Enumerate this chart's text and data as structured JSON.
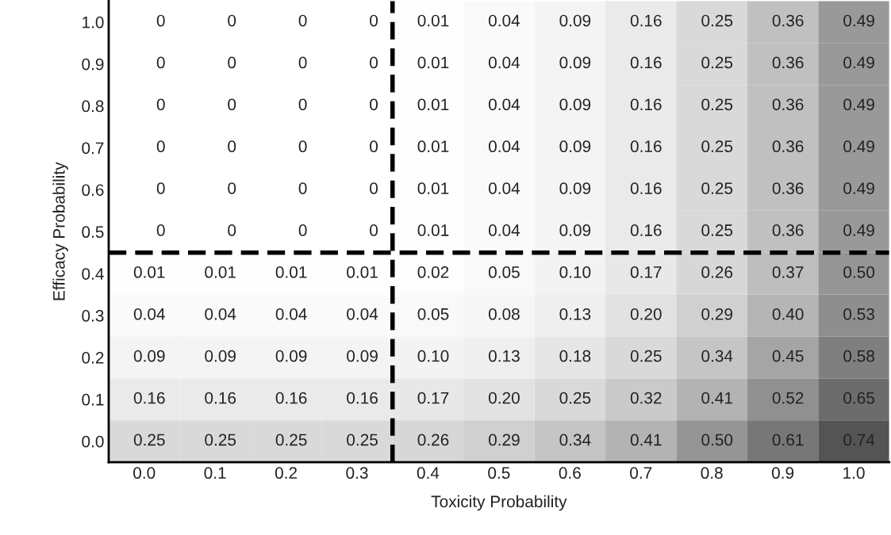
{
  "chart_data": {
    "type": "heatmap",
    "xlabel": "Toxicity Probability",
    "ylabel": "Efficacy Probability",
    "categories": [
      "0.0",
      "0.1",
      "0.2",
      "0.3",
      "0.4",
      "0.5",
      "0.6",
      "0.7",
      "0.8",
      "0.9",
      "1.0"
    ],
    "y_categories": [
      "1.0",
      "0.9",
      "0.8",
      "0.7",
      "0.6",
      "0.5",
      "0.4",
      "0.3",
      "0.2",
      "0.1",
      "0.0"
    ],
    "cells": [
      [
        0,
        0,
        0,
        0,
        0.01,
        0.04,
        0.09,
        0.16,
        0.25,
        0.36,
        0.49
      ],
      [
        0,
        0,
        0,
        0,
        0.01,
        0.04,
        0.09,
        0.16,
        0.25,
        0.36,
        0.49
      ],
      [
        0,
        0,
        0,
        0,
        0.01,
        0.04,
        0.09,
        0.16,
        0.25,
        0.36,
        0.49
      ],
      [
        0,
        0,
        0,
        0,
        0.01,
        0.04,
        0.09,
        0.16,
        0.25,
        0.36,
        0.49
      ],
      [
        0,
        0,
        0,
        0,
        0.01,
        0.04,
        0.09,
        0.16,
        0.25,
        0.36,
        0.49
      ],
      [
        0,
        0,
        0,
        0,
        0.01,
        0.04,
        0.09,
        0.16,
        0.25,
        0.36,
        0.49
      ],
      [
        0.01,
        0.01,
        0.01,
        0.01,
        0.02,
        0.05,
        0.1,
        0.17,
        0.26,
        0.37,
        0.5
      ],
      [
        0.04,
        0.04,
        0.04,
        0.04,
        0.05,
        0.08,
        0.13,
        0.2,
        0.29,
        0.4,
        0.53
      ],
      [
        0.09,
        0.09,
        0.09,
        0.09,
        0.1,
        0.13,
        0.18,
        0.25,
        0.34,
        0.45,
        0.58
      ],
      [
        0.16,
        0.16,
        0.16,
        0.16,
        0.17,
        0.2,
        0.25,
        0.32,
        0.41,
        0.52,
        0.65
      ],
      [
        0.25,
        0.25,
        0.25,
        0.25,
        0.26,
        0.29,
        0.34,
        0.41,
        0.5,
        0.61,
        0.74
      ]
    ],
    "cell_labels": [
      [
        "0",
        "0",
        "0",
        "0",
        "0.01",
        "0.04",
        "0.09",
        "0.16",
        "0.25",
        "0.36",
        "0.49"
      ],
      [
        "0",
        "0",
        "0",
        "0",
        "0.01",
        "0.04",
        "0.09",
        "0.16",
        "0.25",
        "0.36",
        "0.49"
      ],
      [
        "0",
        "0",
        "0",
        "0",
        "0.01",
        "0.04",
        "0.09",
        "0.16",
        "0.25",
        "0.36",
        "0.49"
      ],
      [
        "0",
        "0",
        "0",
        "0",
        "0.01",
        "0.04",
        "0.09",
        "0.16",
        "0.25",
        "0.36",
        "0.49"
      ],
      [
        "0",
        "0",
        "0",
        "0",
        "0.01",
        "0.04",
        "0.09",
        "0.16",
        "0.25",
        "0.36",
        "0.49"
      ],
      [
        "0",
        "0",
        "0",
        "0",
        "0.01",
        "0.04",
        "0.09",
        "0.16",
        "0.25",
        "0.36",
        "0.49"
      ],
      [
        "0.01",
        "0.01",
        "0.01",
        "0.01",
        "0.02",
        "0.05",
        "0.10",
        "0.17",
        "0.26",
        "0.37",
        "0.50"
      ],
      [
        "0.04",
        "0.04",
        "0.04",
        "0.04",
        "0.05",
        "0.08",
        "0.13",
        "0.20",
        "0.29",
        "0.40",
        "0.53"
      ],
      [
        "0.09",
        "0.09",
        "0.09",
        "0.09",
        "0.10",
        "0.13",
        "0.18",
        "0.25",
        "0.34",
        "0.45",
        "0.58"
      ],
      [
        "0.16",
        "0.16",
        "0.16",
        "0.16",
        "0.17",
        "0.20",
        "0.25",
        "0.32",
        "0.41",
        "0.52",
        "0.65"
      ],
      [
        "0.25",
        "0.25",
        "0.25",
        "0.25",
        "0.26",
        "0.29",
        "0.34",
        "0.41",
        "0.50",
        "0.61",
        "0.74"
      ]
    ]
  }
}
